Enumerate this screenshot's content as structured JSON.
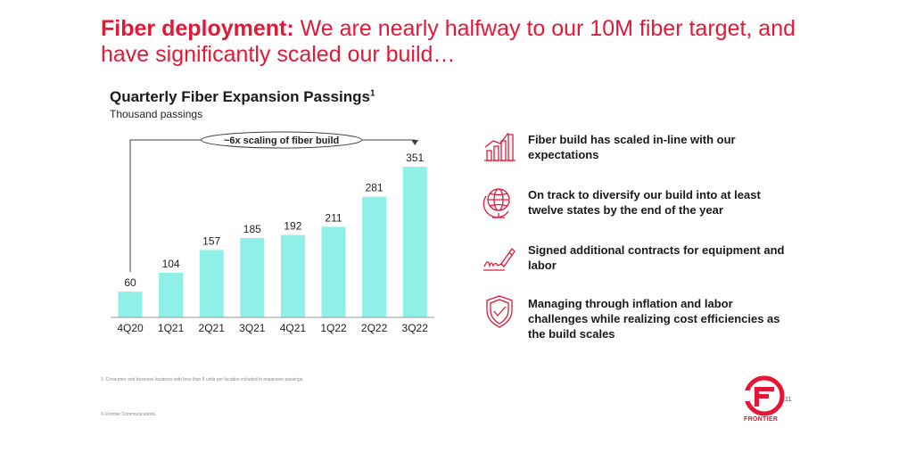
{
  "headline": {
    "bold": "Fiber deployment:",
    "rest": " We are nearly halfway to our 10M fiber target, and have significantly scaled our build…"
  },
  "chart_data": {
    "type": "bar",
    "title": "Quarterly Fiber Expansion Passings",
    "title_footnote": "1",
    "subtitle": "Thousand  passings",
    "categories": [
      "4Q20",
      "1Q21",
      "2Q21",
      "3Q21",
      "4Q21",
      "1Q22",
      "2Q22",
      "3Q22"
    ],
    "values": [
      60,
      104,
      157,
      185,
      192,
      211,
      281,
      351
    ],
    "ylim": [
      0,
      351
    ],
    "annotation": "~6x scaling of fiber build",
    "annotation_from": "4Q20",
    "annotation_to": "3Q22",
    "bar_color": "#8ff0e8"
  },
  "points": [
    {
      "icon": "bar-chart-growth-icon",
      "text": "Fiber build has scaled in-line with our expectations"
    },
    {
      "icon": "globe-icon",
      "text": "On track to diversify our build into at least twelve states by the end of the year"
    },
    {
      "icon": "signature-pen-icon",
      "text": "Signed additional contracts for equipment and labor"
    },
    {
      "icon": "shield-check-icon",
      "text": "Managing through inflation and labor challenges while realizing cost efficiencies as the build scales"
    }
  ],
  "footnote": "1. Consumer and business locations with less than 5 units per location included in expansion passings.",
  "copyright": "© Frontier Communications.",
  "page_number": "11",
  "logo": {
    "text": "FRONTIER",
    "color": "#e31837"
  },
  "accent_color": "#e31837"
}
